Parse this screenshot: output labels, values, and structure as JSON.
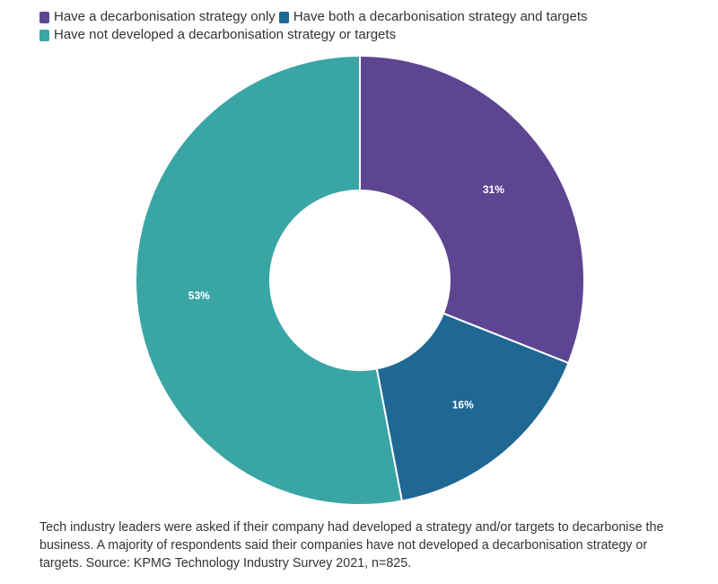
{
  "chart_data": {
    "type": "pie",
    "variant": "donut",
    "series": [
      {
        "name": "Have a decarbonisation strategy only",
        "value": 31,
        "label": "31%",
        "color": "#5e4592"
      },
      {
        "name": "Have both a decarbonisation strategy and targets",
        "value": 16,
        "label": "16%",
        "color": "#1f6894"
      },
      {
        "name": "Have not developed a decarbonisation strategy or targets",
        "value": 53,
        "label": "53%",
        "color": "#3aa5a5"
      }
    ],
    "legend_position": "top-left",
    "caption": "Tech industry leaders were asked if their company had developed a strategy and/or targets to decarbonise the business. A majority of respondents said their companies have not developed a decarbonisation strategy or targets. Source: KPMG Technology Industry Survey 2021, n=825."
  }
}
